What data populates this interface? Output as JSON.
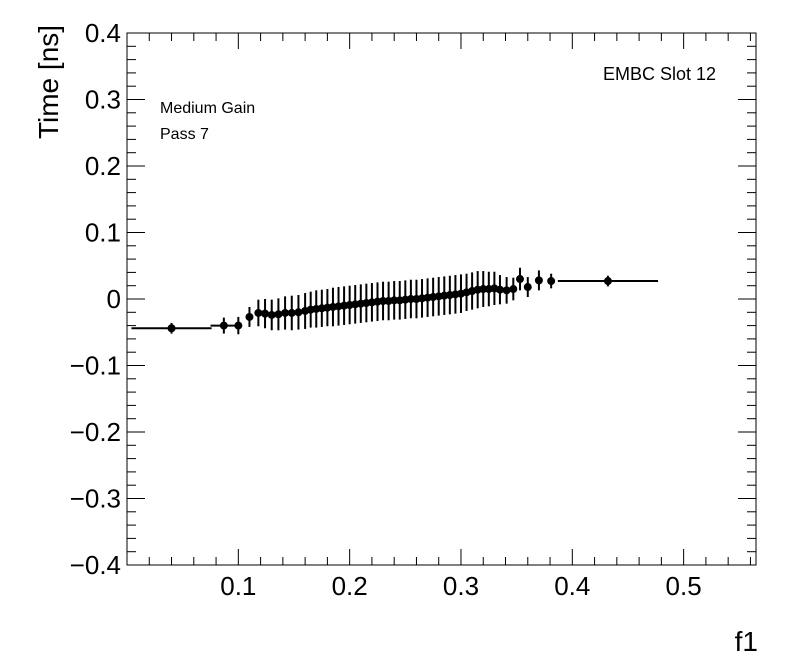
{
  "chart_data": {
    "type": "scatter",
    "title": "",
    "xlabel": "f1",
    "ylabel": "Time [ns]",
    "xlim": [
      0.0,
      0.565
    ],
    "ylim": [
      -0.4,
      0.4
    ],
    "grid": false,
    "x_ticks": [
      {
        "value": 0.1,
        "label": "0.1"
      },
      {
        "value": 0.2,
        "label": "0.2"
      },
      {
        "value": 0.3,
        "label": "0.3"
      },
      {
        "value": 0.4,
        "label": "0.4"
      },
      {
        "value": 0.5,
        "label": "0.5"
      }
    ],
    "y_ticks": [
      {
        "value": 0.4,
        "label": "0.4"
      },
      {
        "value": 0.3,
        "label": "0.3"
      },
      {
        "value": 0.2,
        "label": "0.2"
      },
      {
        "value": 0.1,
        "label": "0.1"
      },
      {
        "value": 0.0,
        "label": "0"
      },
      {
        "value": -0.1,
        "label": "−0.1"
      },
      {
        "value": -0.2,
        "label": "−0.2"
      },
      {
        "value": -0.3,
        "label": "−0.3"
      },
      {
        "value": -0.4,
        "label": "−0.4"
      }
    ],
    "annotations": [
      "Medium Gain",
      "Pass 7",
      "EMBC Slot 12"
    ],
    "series": [
      {
        "points": [
          {
            "x": 0.04,
            "y": -0.044,
            "xerr": 0.036,
            "yerr": 0.008
          },
          {
            "x": 0.087,
            "y": -0.04,
            "xerr": 0.012,
            "yerr": 0.012
          },
          {
            "x": 0.1,
            "y": -0.04,
            "xerr": 0.0,
            "yerr": 0.013
          },
          {
            "x": 0.11,
            "y": -0.027,
            "xerr": 0.0,
            "yerr": 0.015
          },
          {
            "x": 0.118,
            "y": -0.021,
            "xerr": 0.0,
            "yerr": 0.02
          },
          {
            "x": 0.124,
            "y": -0.022,
            "xerr": 0.0,
            "yerr": 0.022
          },
          {
            "x": 0.13,
            "y": -0.024,
            "xerr": 0.0,
            "yerr": 0.023
          },
          {
            "x": 0.136,
            "y": -0.023,
            "xerr": 0.0,
            "yerr": 0.024
          },
          {
            "x": 0.142,
            "y": -0.021,
            "xerr": 0.0,
            "yerr": 0.025
          },
          {
            "x": 0.148,
            "y": -0.021,
            "xerr": 0.0,
            "yerr": 0.026
          },
          {
            "x": 0.154,
            "y": -0.02,
            "xerr": 0.0,
            "yerr": 0.026
          },
          {
            "x": 0.16,
            "y": -0.018,
            "xerr": 0.0,
            "yerr": 0.027
          },
          {
            "x": 0.165,
            "y": -0.016,
            "xerr": 0.0,
            "yerr": 0.027
          },
          {
            "x": 0.17,
            "y": -0.015,
            "xerr": 0.0,
            "yerr": 0.028
          },
          {
            "x": 0.175,
            "y": -0.014,
            "xerr": 0.0,
            "yerr": 0.028
          },
          {
            "x": 0.18,
            "y": -0.013,
            "xerr": 0.0,
            "yerr": 0.028
          },
          {
            "x": 0.185,
            "y": -0.012,
            "xerr": 0.0,
            "yerr": 0.029
          },
          {
            "x": 0.19,
            "y": -0.011,
            "xerr": 0.0,
            "yerr": 0.029
          },
          {
            "x": 0.195,
            "y": -0.01,
            "xerr": 0.0,
            "yerr": 0.029
          },
          {
            "x": 0.2,
            "y": -0.009,
            "xerr": 0.0,
            "yerr": 0.029
          },
          {
            "x": 0.205,
            "y": -0.008,
            "xerr": 0.0,
            "yerr": 0.029
          },
          {
            "x": 0.21,
            "y": -0.007,
            "xerr": 0.0,
            "yerr": 0.029
          },
          {
            "x": 0.215,
            "y": -0.006,
            "xerr": 0.0,
            "yerr": 0.029
          },
          {
            "x": 0.22,
            "y": -0.005,
            "xerr": 0.0,
            "yerr": 0.029
          },
          {
            "x": 0.225,
            "y": -0.004,
            "xerr": 0.0,
            "yerr": 0.029
          },
          {
            "x": 0.23,
            "y": -0.003,
            "xerr": 0.0,
            "yerr": 0.029
          },
          {
            "x": 0.235,
            "y": -0.003,
            "xerr": 0.0,
            "yerr": 0.029
          },
          {
            "x": 0.24,
            "y": -0.002,
            "xerr": 0.0,
            "yerr": 0.029
          },
          {
            "x": 0.245,
            "y": -0.002,
            "xerr": 0.0,
            "yerr": 0.029
          },
          {
            "x": 0.25,
            "y": -0.001,
            "xerr": 0.0,
            "yerr": 0.029
          },
          {
            "x": 0.255,
            "y": 0.0,
            "xerr": 0.0,
            "yerr": 0.029
          },
          {
            "x": 0.26,
            "y": 0.0,
            "xerr": 0.0,
            "yerr": 0.029
          },
          {
            "x": 0.265,
            "y": 0.001,
            "xerr": 0.0,
            "yerr": 0.029
          },
          {
            "x": 0.27,
            "y": 0.002,
            "xerr": 0.0,
            "yerr": 0.029
          },
          {
            "x": 0.275,
            "y": 0.003,
            "xerr": 0.0,
            "yerr": 0.029
          },
          {
            "x": 0.28,
            "y": 0.004,
            "xerr": 0.0,
            "yerr": 0.029
          },
          {
            "x": 0.285,
            "y": 0.005,
            "xerr": 0.0,
            "yerr": 0.029
          },
          {
            "x": 0.29,
            "y": 0.006,
            "xerr": 0.0,
            "yerr": 0.029
          },
          {
            "x": 0.295,
            "y": 0.007,
            "xerr": 0.0,
            "yerr": 0.029
          },
          {
            "x": 0.3,
            "y": 0.008,
            "xerr": 0.0,
            "yerr": 0.029
          },
          {
            "x": 0.305,
            "y": 0.01,
            "xerr": 0.0,
            "yerr": 0.028
          },
          {
            "x": 0.31,
            "y": 0.012,
            "xerr": 0.0,
            "yerr": 0.028
          },
          {
            "x": 0.315,
            "y": 0.014,
            "xerr": 0.0,
            "yerr": 0.028
          },
          {
            "x": 0.32,
            "y": 0.015,
            "xerr": 0.0,
            "yerr": 0.027
          },
          {
            "x": 0.325,
            "y": 0.015,
            "xerr": 0.0,
            "yerr": 0.026
          },
          {
            "x": 0.33,
            "y": 0.016,
            "xerr": 0.0,
            "yerr": 0.025
          },
          {
            "x": 0.335,
            "y": 0.014,
            "xerr": 0.0,
            "yerr": 0.022
          },
          {
            "x": 0.341,
            "y": 0.013,
            "xerr": 0.0,
            "yerr": 0.02
          },
          {
            "x": 0.347,
            "y": 0.015,
            "xerr": 0.0,
            "yerr": 0.017
          },
          {
            "x": 0.353,
            "y": 0.03,
            "xerr": 0.0,
            "yerr": 0.017
          },
          {
            "x": 0.36,
            "y": 0.018,
            "xerr": 0.0,
            "yerr": 0.015
          },
          {
            "x": 0.37,
            "y": 0.028,
            "xerr": 0.0,
            "yerr": 0.015
          },
          {
            "x": 0.381,
            "y": 0.027,
            "xerr": 0.0,
            "yerr": 0.011
          },
          {
            "x": 0.432,
            "y": 0.027,
            "xerr": 0.045,
            "yerr": 0.008
          }
        ]
      }
    ]
  }
}
